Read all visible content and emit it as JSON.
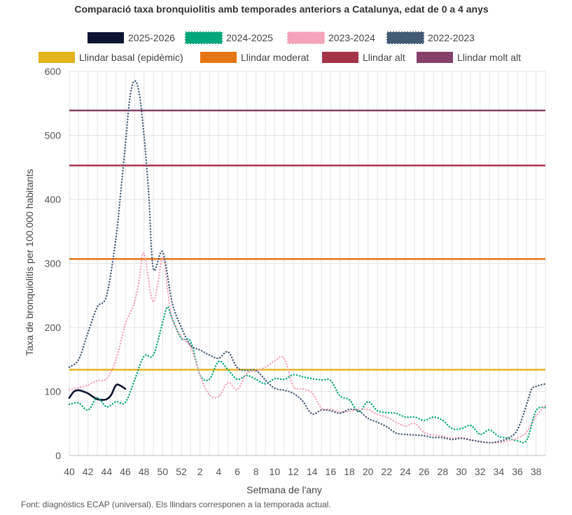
{
  "chart_data": {
    "type": "line",
    "title": "Comparació taxa bronquiolitis amb temporades anteriors a Catalunya, edat de 0 a 4 anys",
    "xlabel": "Setmana de l'any",
    "ylabel": "Taxa de bronquiolitis per 100.000 habitants",
    "source": "Font: diagnòstics ECAP (universal). Els llindars corresponen a la temporada actual.",
    "ylim": [
      0,
      600
    ],
    "yticks": [
      "0",
      "100",
      "200",
      "300",
      "400",
      "500",
      "600"
    ],
    "ytick_values": [
      0,
      100,
      200,
      300,
      400,
      500,
      600
    ],
    "xlim": [
      0,
      51
    ],
    "xtick_labels": [
      "40",
      "42",
      "44",
      "46",
      "48",
      "50",
      "52",
      "2",
      "4",
      "6",
      "8",
      "10",
      "12",
      "14",
      "16",
      "18",
      "20",
      "22",
      "24",
      "26",
      "28",
      "30",
      "32",
      "34",
      "36",
      "38"
    ],
    "xtick_positions": [
      0,
      2,
      4,
      6,
      8,
      10,
      12,
      14,
      16,
      18,
      20,
      22,
      24,
      26,
      28,
      30,
      32,
      34,
      36,
      38,
      40,
      42,
      44,
      46,
      48,
      50
    ],
    "grid": true,
    "legend": [
      {
        "name": "2025-2026",
        "color": "#0c1431",
        "style": "solid"
      },
      {
        "name": "2024-2025",
        "color": "#00a77a",
        "style": "dotted"
      },
      {
        "name": "2023-2024",
        "color": "#f5a3b8",
        "style": "dotted"
      },
      {
        "name": "2022-2023",
        "color": "#435a73",
        "style": "dotted"
      }
    ],
    "thresholds": [
      {
        "name": "Llindar basal (epidèmic)",
        "value": 134,
        "color": "#e6b31e"
      },
      {
        "name": "Llindar moderat",
        "value": 307,
        "color": "#e67514"
      },
      {
        "name": "Llindar alt",
        "value": 453,
        "color": "#a53448"
      },
      {
        "name": "Llindar molt alt",
        "value": 539,
        "color": "#85416a"
      }
    ],
    "series": [
      {
        "name": "2025-2026",
        "color": "#0c1431",
        "style": "solid",
        "x": [
          0,
          0.5,
          1,
          1.5,
          2,
          2.5,
          3,
          3.5,
          4,
          4.5,
          5,
          5.5,
          6
        ],
        "values": [
          90,
          100,
          102,
          100,
          97,
          92,
          88,
          87,
          88,
          95,
          110,
          109,
          104
        ]
      },
      {
        "name": "2024-2025",
        "color": "#00a77a",
        "style": "dotted",
        "x": [
          0,
          1,
          2,
          3,
          4,
          5,
          6,
          7,
          8,
          9,
          10,
          10.5,
          11,
          12,
          13,
          14,
          15,
          16,
          17,
          18,
          19,
          20,
          21,
          22,
          23,
          24,
          25,
          26,
          27,
          28,
          29,
          30,
          31,
          32,
          33,
          34,
          35,
          36,
          37,
          38,
          39,
          40,
          41,
          42,
          43,
          44,
          45,
          46,
          47,
          48,
          49,
          50,
          51
        ],
        "values": [
          80,
          82,
          71,
          90,
          76,
          84,
          83,
          118,
          155,
          157,
          208,
          232,
          215,
          183,
          178,
          126,
          119,
          147,
          134,
          119,
          125,
          119,
          112,
          120,
          119,
          126,
          123,
          120,
          118,
          117,
          93,
          87,
          68,
          84,
          70,
          67,
          66,
          60,
          60,
          55,
          60,
          55,
          42,
          42,
          47,
          33,
          40,
          30,
          27,
          23,
          24,
          70,
          75
        ]
      },
      {
        "name": "2023-2024",
        "color": "#f5a3b8",
        "style": "dotted",
        "x": [
          0,
          1,
          2,
          3,
          4,
          5,
          6,
          6.5,
          7,
          7.5,
          8,
          9,
          10,
          10.5,
          11,
          12,
          13,
          14,
          15,
          16,
          17,
          18,
          19,
          20,
          21,
          22,
          23,
          24,
          25,
          26,
          27,
          28,
          29,
          30,
          31,
          32,
          33,
          34,
          35,
          36,
          37,
          38,
          39,
          40,
          41,
          42,
          43,
          44,
          45,
          46,
          47,
          48,
          49,
          50,
          51
        ],
        "values": [
          103,
          106,
          110,
          117,
          120,
          150,
          205,
          222,
          240,
          275,
          316,
          240,
          310,
          262,
          215,
          185,
          170,
          125,
          95,
          92,
          114,
          103,
          128,
          132,
          138,
          148,
          152,
          108,
          104,
          98,
          74,
          72,
          68,
          69,
          72,
          72,
          64,
          60,
          52,
          46,
          50,
          36,
          32,
          30,
          27,
          28,
          25,
          21,
          20,
          20,
          23,
          27,
          37,
          62,
          78
        ]
      },
      {
        "name": "2022-2023",
        "color": "#435a73",
        "style": "dotted",
        "x": [
          0,
          1,
          2,
          3,
          4,
          5,
          5.5,
          6,
          6.5,
          7,
          7.5,
          8,
          8.5,
          9,
          10,
          11,
          12,
          13,
          14,
          15,
          16,
          17,
          18,
          19,
          20,
          21,
          22,
          23,
          24,
          25,
          26,
          27,
          28,
          29,
          30,
          31,
          32,
          33,
          34,
          35,
          36,
          37,
          38,
          39,
          40,
          41,
          42,
          43,
          44,
          45,
          46,
          47,
          48,
          49,
          49.5,
          50,
          51
        ],
        "values": [
          138,
          150,
          192,
          232,
          250,
          340,
          410,
          485,
          560,
          585,
          565,
          500,
          410,
          292,
          318,
          240,
          200,
          172,
          165,
          157,
          152,
          162,
          137,
          133,
          133,
          118,
          105,
          102,
          97,
          85,
          65,
          71,
          70,
          66,
          72,
          70,
          58,
          52,
          45,
          35,
          33,
          32,
          31,
          28,
          28,
          25,
          27,
          24,
          22,
          20,
          22,
          27,
          40,
          80,
          103,
          108,
          112
        ]
      }
    ]
  }
}
